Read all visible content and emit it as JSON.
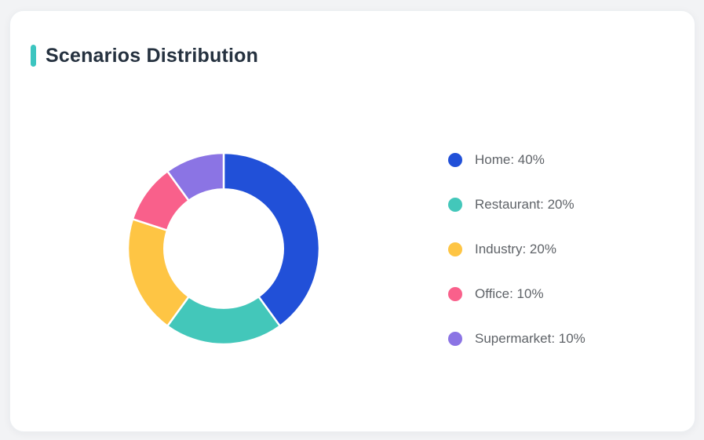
{
  "page": {
    "background_color": "#f2f3f5"
  },
  "card": {
    "background_color": "#ffffff",
    "accent_color": "#3cc5c0"
  },
  "header": {
    "title": "Scenarios Distribution",
    "title_color": "#25313f"
  },
  "chart_data": {
    "type": "pie",
    "title": "Scenarios Distribution",
    "donut": true,
    "inner_radius_ratio": 0.62,
    "start_angle_deg": -90,
    "direction": "clockwise",
    "separator_color": "#ffffff",
    "legend_position": "right",
    "unit": "%",
    "categories": [
      "Home",
      "Restaurant",
      "Industry",
      "Office",
      "Supermarket"
    ],
    "values": [
      40,
      20,
      20,
      10,
      10
    ],
    "colors": [
      "#2150d8",
      "#43c7ba",
      "#fec544",
      "#f9608b",
      "#8b74e4"
    ],
    "legend": [
      {
        "label": "Home: 40%",
        "color": "#2150d8"
      },
      {
        "label": "Restaurant: 20%",
        "color": "#43c7ba"
      },
      {
        "label": "Industry: 20%",
        "color": "#fec544"
      },
      {
        "label": "Office: 10%",
        "color": "#f9608b"
      },
      {
        "label": "Supermarket: 10%",
        "color": "#8b74e4"
      }
    ]
  }
}
